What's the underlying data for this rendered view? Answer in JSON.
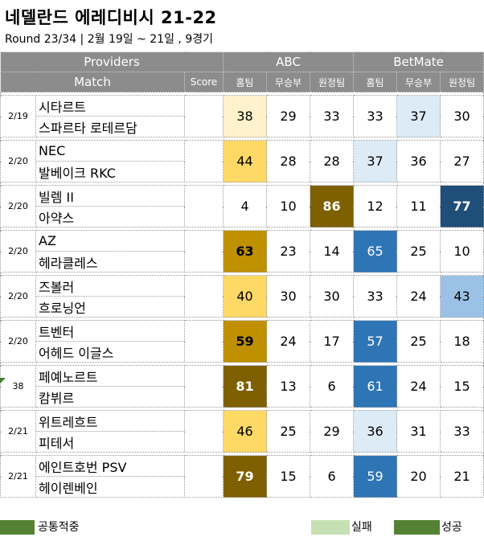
{
  "header": {
    "title": "네델란드 에레디비시 21-22",
    "subtitle": "Round 23/34 | 2월 19일 ~ 21일 , 9경기"
  },
  "table_headers": {
    "providers": "Providers",
    "match": "Match",
    "score": "Score",
    "abc": "ABC",
    "betmate": "BetMate",
    "home": "홈팀",
    "draw": "무승부",
    "away": "원정팀"
  },
  "colors": {
    "header_bg": "#8c8c8c",
    "abc_light": "#fff2cc",
    "abc_mid": "#ffd966",
    "abc_strong": "#bf9000",
    "abc_dark": "#7f6000",
    "bm_pale": "#ddebf7",
    "bm_light": "#9bc2e6",
    "bm_mid": "#2e75b6",
    "bm_dark": "#1f4e78",
    "legend_common": "#548235",
    "legend_fail": "#c6e0b4",
    "legend_success": "#548235"
  },
  "matches": [
    {
      "date": "2/19",
      "home": "시타르트",
      "away": "스파르타 로테르담",
      "score": "",
      "abc": [
        38,
        29,
        33
      ],
      "betmate": [
        33,
        37,
        30
      ],
      "abc_style": [
        "abc_light",
        "",
        ""
      ],
      "bm_style": [
        "",
        "bm_pale",
        ""
      ]
    },
    {
      "date": "2/20",
      "home": "NEC",
      "away": "발베이크 RKC",
      "score": "",
      "abc": [
        44,
        28,
        28
      ],
      "betmate": [
        37,
        36,
        27
      ],
      "abc_style": [
        "abc_mid",
        "",
        ""
      ],
      "bm_style": [
        "bm_pale",
        "",
        ""
      ]
    },
    {
      "date": "2/20",
      "home": "빌렘 II",
      "away": "아약스",
      "score": "",
      "abc": [
        4,
        10,
        86
      ],
      "betmate": [
        12,
        11,
        77
      ],
      "abc_style": [
        "",
        "",
        "abc_dark"
      ],
      "bm_style": [
        "",
        "",
        "bm_dark"
      ]
    },
    {
      "date": "2/20",
      "home": "AZ",
      "away": "헤라클레스",
      "score": "",
      "abc": [
        63,
        23,
        14
      ],
      "betmate": [
        65,
        25,
        10
      ],
      "abc_style": [
        "abc_strong",
        "",
        ""
      ],
      "bm_style": [
        "bm_mid",
        "",
        ""
      ]
    },
    {
      "date": "2/20",
      "home": "즈볼러",
      "away": "흐로닝언",
      "score": "",
      "abc": [
        40,
        30,
        30
      ],
      "betmate": [
        33,
        24,
        43
      ],
      "abc_style": [
        "abc_mid",
        "",
        ""
      ],
      "bm_style": [
        "",
        "",
        "bm_light"
      ]
    },
    {
      "date": "2/20",
      "home": "트벤터",
      "away": "어헤드 이글스",
      "score": "",
      "abc": [
        59,
        24,
        17
      ],
      "betmate": [
        57,
        25,
        18
      ],
      "abc_style": [
        "abc_strong",
        "",
        ""
      ],
      "bm_style": [
        "bm_mid",
        "",
        ""
      ]
    },
    {
      "date": "38",
      "home": "페예노르트",
      "away": "캄뷔르",
      "score": "",
      "abc": [
        81,
        13,
        6
      ],
      "betmate": [
        61,
        24,
        15
      ],
      "abc_style": [
        "abc_dark",
        "",
        ""
      ],
      "bm_style": [
        "bm_mid",
        "",
        ""
      ]
    },
    {
      "date": "2/21",
      "home": "위트레흐트",
      "away": "피테서",
      "score": "",
      "abc": [
        46,
        25,
        29
      ],
      "betmate": [
        36,
        31,
        33
      ],
      "abc_style": [
        "abc_mid",
        "",
        ""
      ],
      "bm_style": [
        "bm_pale",
        "",
        ""
      ]
    },
    {
      "date": "2/21",
      "home": "에인트호번 PSV",
      "away": "헤이렌베인",
      "score": "",
      "abc": [
        79,
        15,
        6
      ],
      "betmate": [
        59,
        20,
        21
      ],
      "abc_style": [
        "abc_dark",
        "",
        ""
      ],
      "bm_style": [
        "bm_mid",
        "",
        ""
      ]
    }
  ],
  "legend": {
    "common": "공통적중",
    "fail": "실패",
    "success": "성공"
  }
}
